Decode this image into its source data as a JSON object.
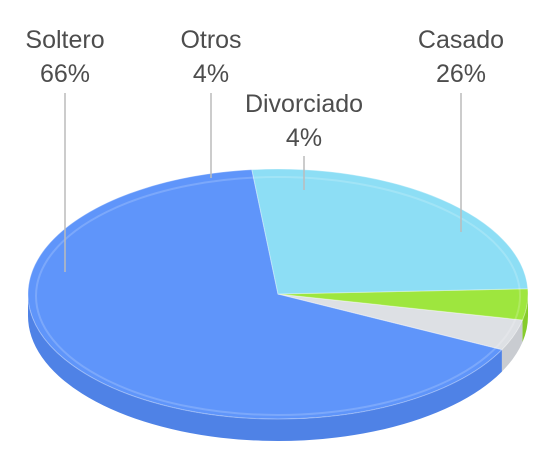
{
  "chart_data": {
    "type": "pie",
    "style": "3d",
    "slices": [
      {
        "label": "Soltero",
        "value": 66,
        "value_label": "66%",
        "color": "#5f95fa",
        "side_color": "#4f82e6"
      },
      {
        "label": "Otros",
        "value": 4,
        "value_label": "4%",
        "color": "#dde0e4",
        "side_color": "#c9ccd1"
      },
      {
        "label": "Divorciado",
        "value": 4,
        "value_label": "4%",
        "color": "#9ee63e",
        "side_color": "#86cc2c"
      },
      {
        "label": "Casado",
        "value": 26,
        "value_label": "26%",
        "color": "#8ddef5",
        "side_color": "#6fc6e0"
      }
    ],
    "leader_line_color": "#bbbbbb",
    "label_color": "#4d4d4d"
  }
}
